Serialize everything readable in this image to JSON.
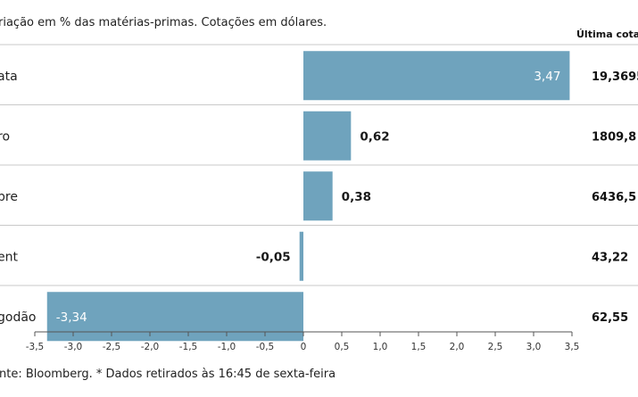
{
  "header": {
    "subtitle": "riação em % das matérias-primas. Cotações em dólares.",
    "last_quote_header": "Última cotaç"
  },
  "footer": {
    "source": "nte: Bloomberg.  * Dados retirados às 16:45 de sexta-feira"
  },
  "chart_data": {
    "type": "bar",
    "orientation": "horizontal",
    "categories": [
      "ata",
      "ro",
      "bre",
      "ent",
      "godão"
    ],
    "values": [
      3.47,
      0.62,
      0.38,
      -0.05,
      -3.34
    ],
    "value_labels": [
      "3,47",
      "0,62",
      "0,38",
      "-0,05",
      "-3,34"
    ],
    "last_quotes": [
      "19,3695",
      "1809,8",
      "6436,5",
      "43,22",
      "62,55"
    ],
    "xlim": [
      -3.5,
      3.5
    ],
    "xticks": [
      "-3,5",
      "-3,0",
      "-2,5",
      "-2,0",
      "-1,5",
      "-1,0",
      "-0,5",
      "0",
      "0,5",
      "1,0",
      "1,5",
      "2,0",
      "2,5",
      "3,0",
      "3,5"
    ],
    "grid": false,
    "colors": {
      "bar": "#6fa3bd",
      "label_inside": "#ffffff",
      "label_outside": "#1a1a1a",
      "separator": "#c9c9c9"
    }
  }
}
